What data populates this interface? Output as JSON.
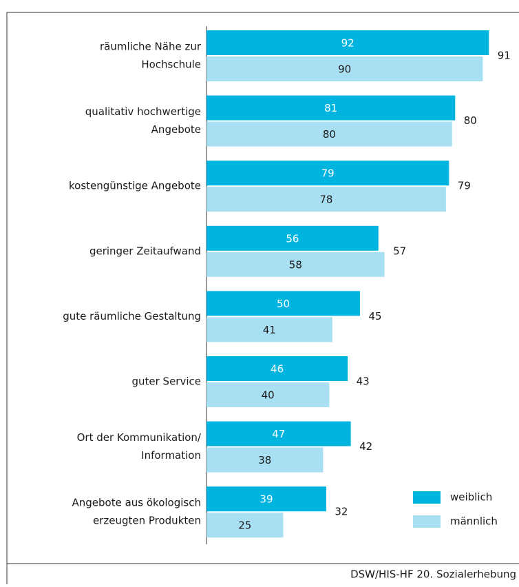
{
  "chart_data": {
    "type": "barh",
    "categories": [
      [
        "räumliche  Nähe zur",
        "Hochschule"
      ],
      [
        "qualitativ hochwertige",
        "Angebote"
      ],
      [
        "kostengünstige Angebote"
      ],
      [
        "geringer Zeitaufwand"
      ],
      [
        "gute räumliche Gestaltung"
      ],
      [
        "guter Service"
      ],
      [
        "Ort der Kommunikation/",
        "Information"
      ],
      [
        "Angebote aus ökologisch",
        "erzeugten Produkten"
      ]
    ],
    "series": [
      {
        "name": "weiblich",
        "color": "#00b4e0",
        "label_color": "#ffffff",
        "values": [
          92,
          81,
          79,
          56,
          50,
          46,
          47,
          39
        ]
      },
      {
        "name": "männlich",
        "color": "#a8dff2",
        "label_color": "#1a1a1a",
        "values": [
          90,
          80,
          78,
          58,
          41,
          40,
          38,
          25
        ]
      }
    ],
    "totals": [
      91,
      80,
      79,
      57,
      45,
      43,
      42,
      32
    ],
    "xlim": [
      0,
      100
    ],
    "legend": "lower right",
    "source": "DSW/HIS-HF 20. Sozialerhebung"
  }
}
